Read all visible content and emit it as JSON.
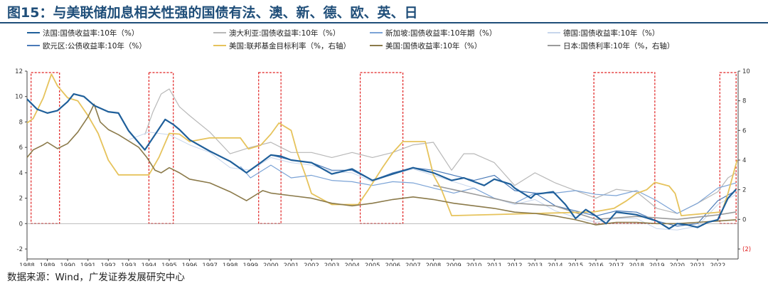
{
  "title": "图15：与美联储加息相关性强的国债有法、澳、新、德、欧、英、日",
  "source": "数据来源：Wind，广发证券发展研究中心",
  "chart_data": {
    "type": "line",
    "xlabels": [
      "1988",
      "1989",
      "1990",
      "1991",
      "1992",
      "1993",
      "1994",
      "1995",
      "1996",
      "1997",
      "1998",
      "1999",
      "2000",
      "2001",
      "2002",
      "2003",
      "2004",
      "2005",
      "2006",
      "2007",
      "2008",
      "2009",
      "2010",
      "2011",
      "2012",
      "2013",
      "2014",
      "2015",
      "2016",
      "2017",
      "2018",
      "2019",
      "2020",
      "2021",
      "2022"
    ],
    "xlim": [
      1988,
      2023
    ],
    "ylim_left": [
      -2,
      12
    ],
    "yticks_left": [
      "-2",
      "0",
      "2",
      "4",
      "6",
      "8",
      "10",
      "12"
    ],
    "ylim_right": [
      -2,
      10
    ],
    "yticks_right": [
      "(2)",
      "0",
      "2",
      "4",
      "6",
      "8",
      "10"
    ],
    "highlight_periods": [
      [
        1988.2,
        1989.6
      ],
      [
        1994.0,
        1995.2
      ],
      [
        1999.4,
        2000.5
      ],
      [
        2004.4,
        2006.5
      ],
      [
        2015.9,
        2018.9
      ],
      [
        2022.1,
        2022.9
      ]
    ],
    "series": [
      {
        "name": "法国:国债收益率:10年（%）",
        "axis": "left",
        "color": "#1f5f9a",
        "width": 2.2,
        "points": [
          [
            1988,
            9.8
          ],
          [
            1988.5,
            9.0
          ],
          [
            1989,
            8.7
          ],
          [
            1989.5,
            8.9
          ],
          [
            1990,
            9.6
          ],
          [
            1990.3,
            10.2
          ],
          [
            1990.8,
            10.0
          ],
          [
            1991.3,
            9.3
          ],
          [
            1992,
            8.8
          ],
          [
            1992.5,
            8.7
          ],
          [
            1993,
            7.3
          ],
          [
            1993.8,
            5.8
          ],
          [
            1994.3,
            7.0
          ],
          [
            1994.8,
            8.2
          ],
          [
            1995.2,
            7.8
          ],
          [
            1995.5,
            7.4
          ],
          [
            1996,
            6.6
          ],
          [
            1997,
            5.7
          ],
          [
            1998,
            4.9
          ],
          [
            1998.8,
            4.0
          ],
          [
            1999.5,
            4.8
          ],
          [
            2000,
            5.4
          ],
          [
            2000.5,
            5.3
          ],
          [
            2001,
            5.0
          ],
          [
            2002,
            4.8
          ],
          [
            2003,
            3.9
          ],
          [
            2004,
            4.3
          ],
          [
            2005,
            3.4
          ],
          [
            2006,
            3.9
          ],
          [
            2007,
            4.4
          ],
          [
            2008,
            4.0
          ],
          [
            2008.9,
            3.4
          ],
          [
            2009.5,
            3.6
          ],
          [
            2010,
            3.3
          ],
          [
            2010.5,
            3.0
          ],
          [
            2011,
            3.5
          ],
          [
            2011.8,
            3.1
          ],
          [
            2012,
            2.8
          ],
          [
            2012.8,
            2.0
          ],
          [
            2013,
            2.3
          ],
          [
            2013.9,
            2.5
          ],
          [
            2014.5,
            1.5
          ],
          [
            2015,
            0.4
          ],
          [
            2015.5,
            1.1
          ],
          [
            2016,
            0.6
          ],
          [
            2016.5,
            0.0
          ],
          [
            2017,
            0.9
          ],
          [
            2018,
            0.7
          ],
          [
            2019,
            0.2
          ],
          [
            2019.6,
            -0.4
          ],
          [
            2020,
            0.0
          ],
          [
            2020.5,
            -0.1
          ],
          [
            2021,
            -0.3
          ],
          [
            2021.5,
            0.1
          ],
          [
            2022,
            0.3
          ],
          [
            2022.5,
            2.0
          ],
          [
            2022.9,
            2.7
          ]
        ]
      },
      {
        "name": "澳大利亚:国债收益率:10年（%）",
        "axis": "left",
        "color": "#b8b8b8",
        "width": 1.2,
        "points": [
          [
            1993.8,
            7.0
          ],
          [
            1994.2,
            8.8
          ],
          [
            1994.6,
            10.2
          ],
          [
            1995,
            10.6
          ],
          [
            1995.5,
            9.2
          ],
          [
            1996,
            8.5
          ],
          [
            1997,
            7.2
          ],
          [
            1998,
            5.5
          ],
          [
            1999,
            6.0
          ],
          [
            2000,
            6.4
          ],
          [
            2001,
            5.6
          ],
          [
            2002,
            5.6
          ],
          [
            2003,
            5.2
          ],
          [
            2004,
            5.6
          ],
          [
            2005,
            5.2
          ],
          [
            2006,
            5.6
          ],
          [
            2007,
            6.2
          ],
          [
            2008,
            6.4
          ],
          [
            2008.9,
            4.2
          ],
          [
            2009.5,
            5.5
          ],
          [
            2010,
            5.5
          ],
          [
            2011,
            4.8
          ],
          [
            2012,
            3.0
          ],
          [
            2013,
            4.0
          ],
          [
            2014,
            3.2
          ],
          [
            2015,
            2.6
          ],
          [
            2016,
            2.0
          ],
          [
            2017,
            2.7
          ],
          [
            2018,
            2.5
          ],
          [
            2019,
            1.2
          ],
          [
            2020,
            0.8
          ],
          [
            2021,
            1.6
          ],
          [
            2022,
            2.5
          ],
          [
            2022.5,
            3.6
          ],
          [
            2022.9,
            4.0
          ]
        ]
      },
      {
        "name": "新加坡:国债收益率:10年期（%）",
        "axis": "left",
        "color": "#7ba3d6",
        "width": 1.2,
        "points": [
          [
            1998.5,
            4.5
          ],
          [
            1999,
            3.6
          ],
          [
            2000,
            4.6
          ],
          [
            2001,
            3.6
          ],
          [
            2002,
            3.8
          ],
          [
            2003,
            3.4
          ],
          [
            2004,
            3.3
          ],
          [
            2005,
            3.0
          ],
          [
            2006,
            3.3
          ],
          [
            2007,
            3.2
          ],
          [
            2008,
            2.8
          ],
          [
            2009,
            2.4
          ],
          [
            2010,
            2.8
          ],
          [
            2011,
            2.0
          ],
          [
            2012,
            1.6
          ],
          [
            2013,
            2.4
          ],
          [
            2014,
            2.4
          ],
          [
            2015,
            2.6
          ],
          [
            2016,
            2.3
          ],
          [
            2017,
            2.2
          ],
          [
            2018,
            2.6
          ],
          [
            2019,
            1.8
          ],
          [
            2020,
            0.8
          ],
          [
            2021,
            1.6
          ],
          [
            2022,
            2.8
          ],
          [
            2022.9,
            3.2
          ]
        ]
      },
      {
        "name": "德国:国债收益率:10年（%）",
        "axis": "left",
        "color": "#c7d6ec",
        "width": 1.0,
        "points": [
          [
            1993,
            6.6
          ],
          [
            1994,
            7.2
          ],
          [
            1995,
            7.0
          ],
          [
            1996,
            6.2
          ],
          [
            1997,
            5.6
          ],
          [
            1998,
            4.4
          ],
          [
            1999,
            4.2
          ],
          [
            2000,
            5.2
          ],
          [
            2001,
            4.8
          ],
          [
            2002,
            4.6
          ],
          [
            2003,
            4.1
          ],
          [
            2004,
            4.0
          ],
          [
            2005,
            3.3
          ],
          [
            2006,
            3.9
          ],
          [
            2007,
            4.3
          ],
          [
            2008,
            3.8
          ],
          [
            2009,
            3.3
          ],
          [
            2010,
            2.8
          ],
          [
            2011,
            2.0
          ],
          [
            2012,
            1.5
          ],
          [
            2013,
            1.9
          ],
          [
            2014,
            1.0
          ],
          [
            2015,
            0.5
          ],
          [
            2016,
            0.1
          ],
          [
            2017,
            0.4
          ],
          [
            2018,
            0.4
          ],
          [
            2019,
            -0.4
          ],
          [
            2020,
            -0.5
          ],
          [
            2021,
            -0.2
          ],
          [
            2022,
            1.5
          ],
          [
            2022.9,
            2.3
          ]
        ]
      },
      {
        "name": "欧元区:公债收益率:10年（%）",
        "axis": "left",
        "color": "#4a7ab8",
        "width": 1.2,
        "points": [
          [
            1999,
            4.2
          ],
          [
            2000,
            5.4
          ],
          [
            2001,
            5.0
          ],
          [
            2002,
            4.8
          ],
          [
            2003,
            4.2
          ],
          [
            2004,
            4.2
          ],
          [
            2005,
            3.4
          ],
          [
            2006,
            4.0
          ],
          [
            2007,
            4.4
          ],
          [
            2008,
            4.2
          ],
          [
            2009,
            3.8
          ],
          [
            2010,
            3.4
          ],
          [
            2011,
            3.8
          ],
          [
            2012,
            2.6
          ],
          [
            2013,
            2.4
          ],
          [
            2014,
            1.4
          ],
          [
            2015,
            1.0
          ],
          [
            2016,
            0.6
          ],
          [
            2017,
            1.0
          ],
          [
            2018,
            0.9
          ],
          [
            2019,
            0.2
          ],
          [
            2020,
            -0.2
          ],
          [
            2021,
            0.0
          ],
          [
            2022,
            1.8
          ],
          [
            2022.9,
            2.6
          ]
        ]
      },
      {
        "name": "美国:联邦基金目标利率（%，右轴）",
        "axis": "right",
        "color": "#e6c35c",
        "width": 1.8,
        "points": [
          [
            1988,
            6.5
          ],
          [
            1988.3,
            6.8
          ],
          [
            1988.8,
            8.2
          ],
          [
            1989.2,
            9.8
          ],
          [
            1989.5,
            9.0
          ],
          [
            1990,
            8.2
          ],
          [
            1990.5,
            8.0
          ],
          [
            1991,
            7.0
          ],
          [
            1991.5,
            5.8
          ],
          [
            1992,
            4.0
          ],
          [
            1992.5,
            3.0
          ],
          [
            1993,
            3.0
          ],
          [
            1994,
            3.0
          ],
          [
            1994.5,
            4.2
          ],
          [
            1995,
            5.8
          ],
          [
            1995.5,
            5.75
          ],
          [
            1996,
            5.25
          ],
          [
            1997,
            5.5
          ],
          [
            1998.5,
            5.5
          ],
          [
            1998.9,
            4.75
          ],
          [
            1999.5,
            5.0
          ],
          [
            2000,
            5.75
          ],
          [
            2000.4,
            6.5
          ],
          [
            2001,
            6.0
          ],
          [
            2001.3,
            4.5
          ],
          [
            2001.7,
            3.0
          ],
          [
            2002,
            1.75
          ],
          [
            2003,
            1.0
          ],
          [
            2004.3,
            1.0
          ],
          [
            2004.8,
            2.0
          ],
          [
            2005.5,
            3.5
          ],
          [
            2006,
            4.5
          ],
          [
            2006.5,
            5.25
          ],
          [
            2007.6,
            5.25
          ],
          [
            2008,
            3.0
          ],
          [
            2008.4,
            2.0
          ],
          [
            2008.9,
            0.25
          ],
          [
            2015.9,
            0.5
          ],
          [
            2016.9,
            0.75
          ],
          [
            2017.5,
            1.25
          ],
          [
            2018,
            1.75
          ],
          [
            2018.5,
            2.0
          ],
          [
            2018.9,
            2.5
          ],
          [
            2019.6,
            2.25
          ],
          [
            2019.9,
            1.75
          ],
          [
            2020.2,
            0.25
          ],
          [
            2022.2,
            0.5
          ],
          [
            2022.5,
            1.75
          ],
          [
            2022.8,
            3.25
          ],
          [
            2022.95,
            4.0
          ]
        ]
      },
      {
        "name": "美国:国债收益率:10年（%）",
        "axis": "left",
        "color": "#8b7a4a",
        "width": 1.6,
        "points": [
          [
            1988,
            5.2
          ],
          [
            1988.3,
            5.8
          ],
          [
            1988.8,
            6.2
          ],
          [
            1989,
            6.4
          ],
          [
            1989.5,
            5.9
          ],
          [
            1990,
            6.3
          ],
          [
            1990.5,
            7.2
          ],
          [
            1991,
            8.4
          ],
          [
            1991.3,
            9.4
          ],
          [
            1991.6,
            8.0
          ],
          [
            1992,
            7.4
          ],
          [
            1992.5,
            7.0
          ],
          [
            1993,
            6.5
          ],
          [
            1993.5,
            6.0
          ],
          [
            1993.9,
            5.2
          ],
          [
            1994.3,
            4.2
          ],
          [
            1994.6,
            4.0
          ],
          [
            1995,
            4.4
          ],
          [
            1995.5,
            4.0
          ],
          [
            1996,
            3.5
          ],
          [
            1997,
            3.2
          ],
          [
            1998,
            2.5
          ],
          [
            1998.8,
            1.8
          ],
          [
            1999.2,
            2.2
          ],
          [
            1999.6,
            2.6
          ],
          [
            2000,
            2.4
          ],
          [
            2001,
            2.2
          ],
          [
            2002,
            2.0
          ],
          [
            2003,
            1.6
          ],
          [
            2004,
            1.4
          ],
          [
            2005,
            1.6
          ],
          [
            2006,
            1.9
          ],
          [
            2007,
            2.1
          ],
          [
            2008,
            1.9
          ],
          [
            2009,
            1.6
          ],
          [
            2010,
            1.4
          ],
          [
            2011,
            1.2
          ],
          [
            2012,
            0.9
          ],
          [
            2013,
            0.8
          ],
          [
            2014,
            0.6
          ],
          [
            2015,
            0.3
          ],
          [
            2016,
            -0.1
          ],
          [
            2016.5,
            0.0
          ],
          [
            2017,
            0.1
          ],
          [
            2018,
            0.1
          ],
          [
            2019,
            0.0
          ],
          [
            2020,
            0.0
          ],
          [
            2021,
            0.1
          ],
          [
            2022,
            0.2
          ],
          [
            2022.9,
            0.3
          ]
        ]
      },
      {
        "name": "日本:国债利率:10年（%，右轴）",
        "axis": "right",
        "color": "#9b9b9b",
        "width": 1.6,
        "points": [
          [
            2008,
            2.3
          ],
          [
            2010,
            1.7
          ],
          [
            2012,
            1.1
          ],
          [
            2014,
            0.9
          ],
          [
            2016,
            0.0
          ],
          [
            2018,
            0.2
          ],
          [
            2020,
            0.0
          ],
          [
            2022,
            0.3
          ],
          [
            2022.9,
            0.5
          ]
        ]
      }
    ],
    "legend": [
      "法国:国债收益率:10年（%）",
      "澳大利亚:国债收益率:10年（%）",
      "新加坡:国债收益率:10年期（%）",
      "德国:国债收益率:10年（%）",
      "欧元区:公债收益率:10年（%）",
      "美国:联邦基金目标利率（%，右轴）",
      "美国:国债收益率:10年（%）",
      "日本:国债利率:10年（%，右轴）"
    ]
  }
}
